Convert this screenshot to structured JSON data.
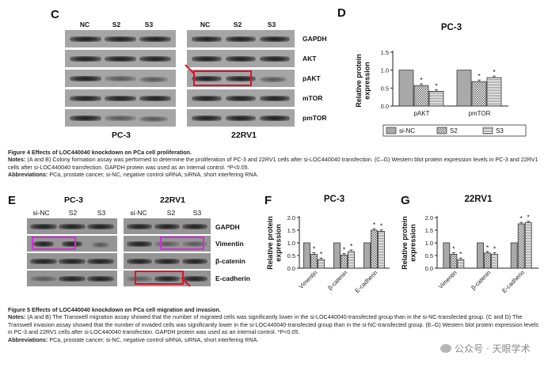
{
  "figure4": {
    "panel_c_letter": "C",
    "panel_d_letter": "D",
    "lane_labels": [
      "NC",
      "S2",
      "S3"
    ],
    "row_labels": [
      "GAPDH",
      "AKT",
      "pAKT",
      "mTOR",
      "pmTOR"
    ],
    "cell_left": "PC-3",
    "cell_right": "22RV1",
    "caption_title": "Figure 4 Effects of LOC440040 knockdown on PCa cell proliferation.",
    "notes_label": "Notes:",
    "notes_text": " (A and B) Colony formation assay was performed to determine the proliferation of PC-3 and 22RV1 cells after si-LOC440040 transfection. (C–G) Western blot protein expression levels in PC-3 and 22RV1 cells after si-LOC440040 transfection. GAPDH protein was used as an internal control. *P<0.05.",
    "abbr_label": "Abbreviations:",
    "abbr_text": " PCa, prostate cancer; si-NC, negative control siRNA; siRNA, short interfering RNA."
  },
  "figure5": {
    "panel_e_letter": "E",
    "panel_f_letter": "F",
    "panel_g_letter": "G",
    "lane_labels": [
      "si-NC",
      "S2",
      "S3"
    ],
    "row_labels": [
      "GAPDH",
      "Vimentin",
      "β-catenin",
      "E-cadherin"
    ],
    "cell_left": "PC-3",
    "cell_right": "22RV1",
    "caption_title": "Figure 5 Effects of LOC440040 knockdown on PCa cell migration and invasion.",
    "notes_label": "Notes:",
    "notes_text": " (A and B) The Transwell migration assay showed that the number of migrated cells was significantly lower in the si-LOC440040-transfected group than in the si-NC-transfected group. (C and D) The Transwell invasion assay showed that the number of invaded cells was significantly lower in the si-LOC440040-transfected group than in the si-NC-transfected group. (E–G) Western blot protein expression levels in PC-3 and 22RV1 cells after si-LOC440040 transfection. GAPDH protein was used as an internal control. *P<0.05.",
    "abbr_label": "Abbreviations:",
    "abbr_text": " PCa, prostate cancer; si-NC, negative control siRNA; siRNA, short interfering RNA."
  },
  "watermark": "公众号 · 天眼学术",
  "colors": {
    "highlight_red": "#e0102a",
    "highlight_magenta": "#d62ad6"
  },
  "chart_data": [
    {
      "id": "D",
      "type": "bar",
      "title": "PC-3",
      "ylabel": "Relative protein\nexpression",
      "ylim": [
        0,
        1.5
      ],
      "yticks": [
        "0.0",
        "0.5",
        "1.0",
        "1.5"
      ],
      "categories": [
        "pAKT",
        "pmTOR"
      ],
      "series": [
        {
          "name": "si-NC",
          "values": [
            1.0,
            1.0
          ]
        },
        {
          "name": "S2",
          "values": [
            0.57,
            0.68
          ]
        },
        {
          "name": "S3",
          "values": [
            0.41,
            0.79
          ]
        }
      ],
      "annotations": [
        {
          "category": "pAKT",
          "series": "S2",
          "text": "*"
        },
        {
          "category": "pAKT",
          "series": "S3",
          "text": "*"
        },
        {
          "category": "pmTOR",
          "series": "S2",
          "text": "*"
        },
        {
          "category": "pmTOR",
          "series": "S3",
          "text": "*"
        }
      ],
      "legend": "bottom"
    },
    {
      "id": "F",
      "type": "bar",
      "title": "PC-3",
      "ylabel": "Relative protein\nexpression",
      "ylim": [
        0,
        2.0
      ],
      "yticks": [
        "0.0",
        "0.5",
        "1.0",
        "1.5",
        "2.0"
      ],
      "categories": [
        "Vimentin",
        "β-catenin",
        "E-cadherin"
      ],
      "series": [
        {
          "name": "",
          "values": [
            1.0,
            1.0,
            1.0
          ]
        },
        {
          "name": "",
          "values": [
            0.55,
            0.52,
            1.5
          ]
        },
        {
          "name": "",
          "values": [
            0.34,
            0.66,
            1.45
          ]
        }
      ],
      "annotations": [
        {
          "category": "Vimentin",
          "series": 1,
          "text": "*"
        },
        {
          "category": "Vimentin",
          "series": 2,
          "text": "*"
        },
        {
          "category": "β-catenin",
          "series": 1,
          "text": "*"
        },
        {
          "category": "β-catenin",
          "series": 2,
          "text": "*"
        },
        {
          "category": "E-cadherin",
          "series": 1,
          "text": "*"
        },
        {
          "category": "E-cadherin",
          "series": 2,
          "text": "*"
        }
      ]
    },
    {
      "id": "G",
      "type": "bar",
      "title": "22RV1",
      "ylabel": "Relative protein\nexpression",
      "ylim": [
        0,
        2.0
      ],
      "yticks": [
        "0.0",
        "0.5",
        "1.0",
        "1.5",
        "2.0"
      ],
      "categories": [
        "Vimentin",
        "β-catenin",
        "E-cadherin"
      ],
      "series": [
        {
          "name": "",
          "values": [
            1.0,
            1.0,
            1.0
          ]
        },
        {
          "name": "",
          "values": [
            0.55,
            0.6,
            1.75
          ]
        },
        {
          "name": "",
          "values": [
            0.34,
            0.55,
            1.8
          ]
        }
      ],
      "annotations": [
        {
          "category": "Vimentin",
          "series": 1,
          "text": "*"
        },
        {
          "category": "Vimentin",
          "series": 2,
          "text": "*"
        },
        {
          "category": "β-catenin",
          "series": 1,
          "text": "*"
        },
        {
          "category": "β-catenin",
          "series": 2,
          "text": "*"
        },
        {
          "category": "E-cadherin",
          "series": 1,
          "text": "*"
        },
        {
          "category": "E-cadherin",
          "series": 2,
          "text": "*"
        }
      ]
    }
  ]
}
